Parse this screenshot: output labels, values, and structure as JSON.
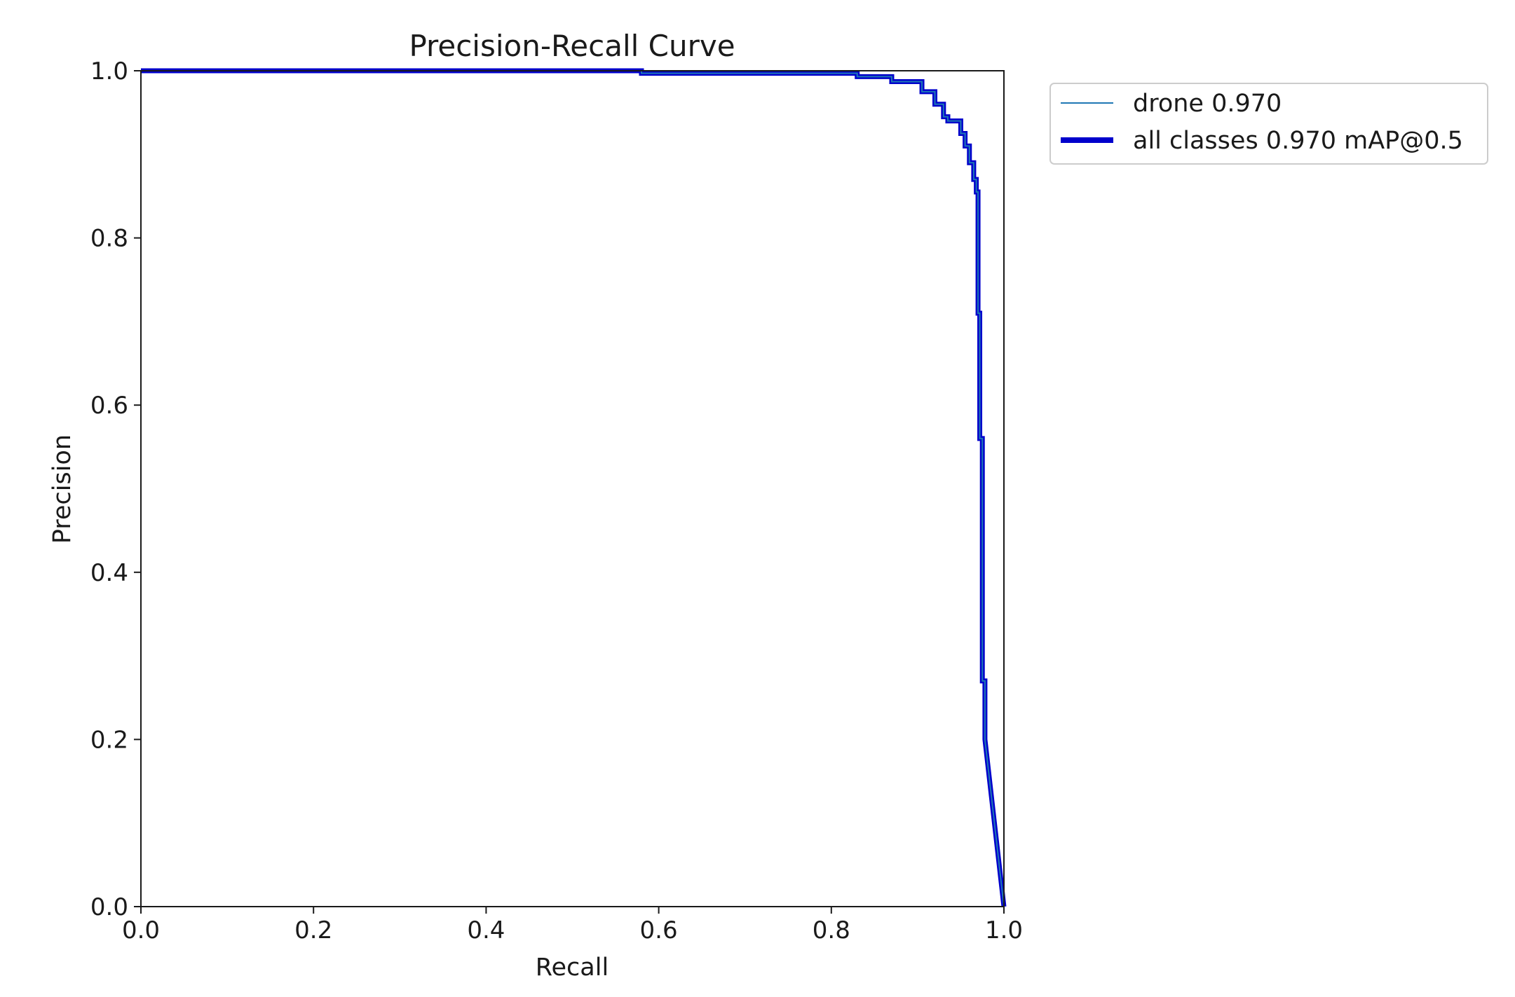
{
  "chart_data": {
    "type": "line",
    "title": "Precision-Recall Curve",
    "xlabel": "Recall",
    "ylabel": "Precision",
    "xlim": [
      0.0,
      1.0
    ],
    "ylim": [
      0.0,
      1.0
    ],
    "x_ticks": [
      "0.0",
      "0.2",
      "0.4",
      "0.6",
      "0.8",
      "1.0"
    ],
    "y_ticks": [
      "0.0",
      "0.2",
      "0.4",
      "0.6",
      "0.8",
      "1.0"
    ],
    "grid": false,
    "legend_position": "outside-top-right",
    "series": [
      {
        "name": "drone 0.970",
        "color": "#1f77b4",
        "line": "thin",
        "x": [
          0.0,
          0.58,
          0.58,
          0.83,
          0.83,
          0.87,
          0.87,
          0.905,
          0.905,
          0.92,
          0.92,
          0.93,
          0.93,
          0.935,
          0.935,
          0.95,
          0.95,
          0.955,
          0.955,
          0.96,
          0.96,
          0.965,
          0.965,
          0.968,
          0.968,
          0.97,
          0.97,
          0.972,
          0.972,
          0.975,
          0.975,
          0.978,
          0.978,
          1.0
        ],
        "y": [
          1.0,
          1.0,
          0.997,
          0.997,
          0.993,
          0.993,
          0.987,
          0.987,
          0.975,
          0.975,
          0.96,
          0.96,
          0.945,
          0.945,
          0.94,
          0.94,
          0.925,
          0.925,
          0.91,
          0.91,
          0.89,
          0.89,
          0.87,
          0.87,
          0.855,
          0.855,
          0.71,
          0.71,
          0.56,
          0.56,
          0.27,
          0.27,
          0.2,
          0.0
        ]
      },
      {
        "name": "all classes 0.970 mAP@0.5",
        "color": "#0000cc",
        "line": "thick",
        "x": [
          0.0,
          0.58,
          0.58,
          0.83,
          0.83,
          0.87,
          0.87,
          0.905,
          0.905,
          0.92,
          0.92,
          0.93,
          0.93,
          0.935,
          0.935,
          0.95,
          0.95,
          0.955,
          0.955,
          0.96,
          0.96,
          0.965,
          0.965,
          0.968,
          0.968,
          0.97,
          0.97,
          0.972,
          0.972,
          0.975,
          0.975,
          0.978,
          0.978,
          1.0
        ],
        "y": [
          1.0,
          1.0,
          0.997,
          0.997,
          0.993,
          0.993,
          0.987,
          0.987,
          0.975,
          0.975,
          0.96,
          0.96,
          0.945,
          0.945,
          0.94,
          0.94,
          0.925,
          0.925,
          0.91,
          0.91,
          0.89,
          0.89,
          0.87,
          0.87,
          0.855,
          0.855,
          0.71,
          0.71,
          0.56,
          0.56,
          0.27,
          0.27,
          0.2,
          0.0
        ]
      }
    ]
  }
}
